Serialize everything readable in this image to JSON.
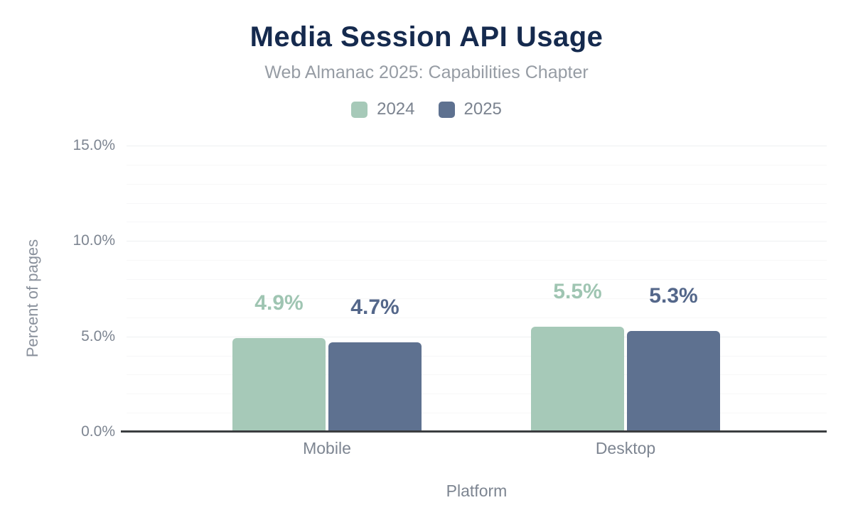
{
  "chart_data": {
    "type": "bar",
    "title": "Media Session API Usage",
    "subtitle": "Web Almanac 2025: Capabilities Chapter",
    "xlabel": "Platform",
    "ylabel": "Percent of pages",
    "categories": [
      "Mobile",
      "Desktop"
    ],
    "series": [
      {
        "name": "2024",
        "values": [
          4.9,
          5.5
        ],
        "value_labels": [
          "4.9%",
          "5.5%"
        ],
        "bar_color": "#a6c9b8",
        "label_color": "#9fc5b2"
      },
      {
        "name": "2025",
        "values": [
          4.7,
          5.3
        ],
        "value_labels": [
          "4.7%",
          "5.3%"
        ],
        "bar_color": "#5e7190",
        "label_color": "#54678a"
      }
    ],
    "y_axis": {
      "ylim": [
        0,
        15
      ],
      "major_tick_step": 5,
      "minor_grid_step": 1,
      "tick_labels": [
        "0.0%",
        "5.0%",
        "10.0%",
        "15.0%"
      ],
      "tick_values": [
        0,
        5,
        10,
        15
      ]
    },
    "legend_position": "top",
    "grid": "horizontal",
    "colors": {
      "title": "#152a4e",
      "subtitle": "#969ca4",
      "axis_text": "#7d8591",
      "axis_line": "#3b3d40",
      "grid_major": "#eef0f1",
      "grid_minor": "#f7f7f8",
      "background": "#ffffff"
    }
  }
}
